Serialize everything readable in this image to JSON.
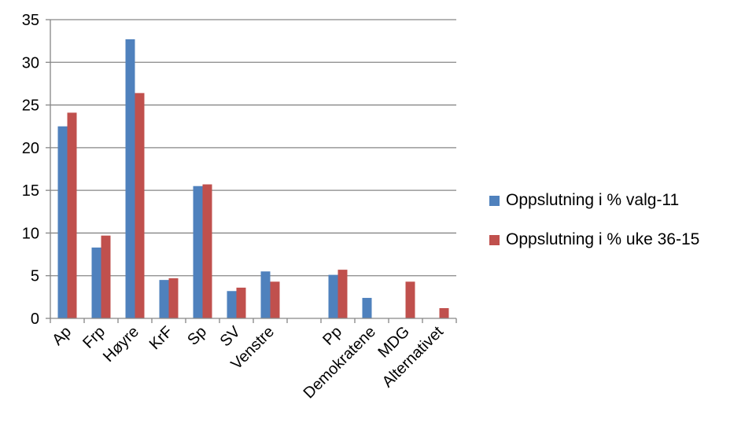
{
  "chart_data": {
    "type": "bar",
    "categories": [
      "Ap",
      "Frp",
      "Høyre",
      "KrF",
      "Sp",
      "SV",
      "Venstre",
      "",
      "Pp",
      "Demokratene",
      "MDG",
      "Alternativet"
    ],
    "series": [
      {
        "name": "Oppslutning i % valg-11",
        "color": "#4F81BD",
        "values": [
          22.5,
          8.3,
          32.7,
          4.5,
          15.5,
          3.2,
          5.5,
          null,
          5.1,
          2.4,
          null,
          null
        ]
      },
      {
        "name": "Oppslutning i % uke 36-15",
        "color": "#C0504D",
        "values": [
          24.1,
          9.7,
          26.4,
          4.7,
          15.7,
          3.6,
          4.3,
          null,
          5.7,
          null,
          4.3,
          1.2
        ]
      }
    ],
    "ylim": [
      0,
      35
    ],
    "yticks": [
      "0",
      "5",
      "10",
      "15",
      "20",
      "25",
      "30",
      "35"
    ],
    "grid": true,
    "legend_position": "right"
  }
}
